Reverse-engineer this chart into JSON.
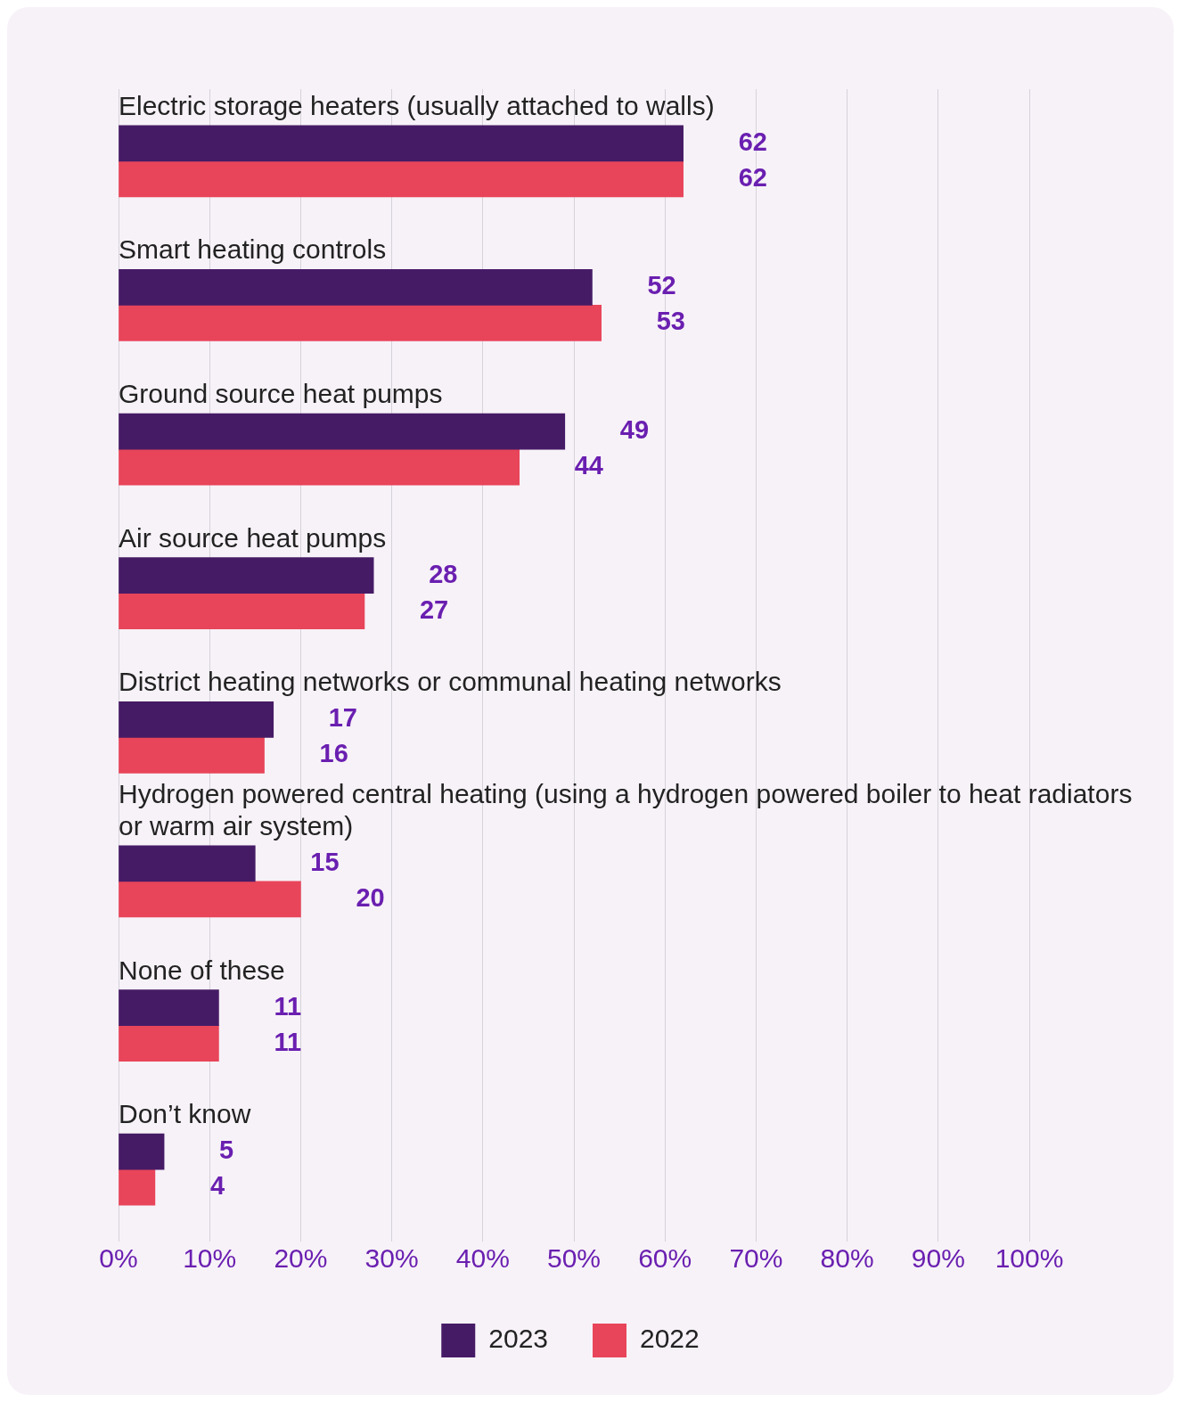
{
  "chart_data": {
    "type": "bar",
    "orientation": "horizontal",
    "categories": [
      "Electric storage heaters (usually attached to walls)",
      "Smart heating controls",
      "Ground source heat pumps",
      "Air source heat pumps",
      "District heating networks or communal heating networks",
      "Hydrogen powered central heating (using a hydrogen powered boiler to heat radiators or warm air system)",
      "None of these",
      "Don’t know"
    ],
    "series": [
      {
        "name": "2023",
        "color": "#461b66",
        "values": [
          62,
          52,
          49,
          28,
          17,
          15,
          11,
          5
        ]
      },
      {
        "name": "2022",
        "color": "#e8455a",
        "values": [
          62,
          53,
          44,
          27,
          16,
          20,
          11,
          4
        ]
      }
    ],
    "xlim": [
      0,
      100
    ],
    "xticks": [
      {
        "value": 0,
        "label": "0%"
      },
      {
        "value": 10,
        "label": "10%"
      },
      {
        "value": 20,
        "label": "20%"
      },
      {
        "value": 30,
        "label": "30%"
      },
      {
        "value": 40,
        "label": "40%"
      },
      {
        "value": 50,
        "label": "50%"
      },
      {
        "value": 60,
        "label": "60%"
      },
      {
        "value": 70,
        "label": "70%"
      },
      {
        "value": 80,
        "label": "80%"
      },
      {
        "value": 90,
        "label": "90%"
      },
      {
        "value": 100,
        "label": "100%"
      }
    ],
    "grid": "x",
    "legend": "bottom",
    "data_labels": true
  }
}
